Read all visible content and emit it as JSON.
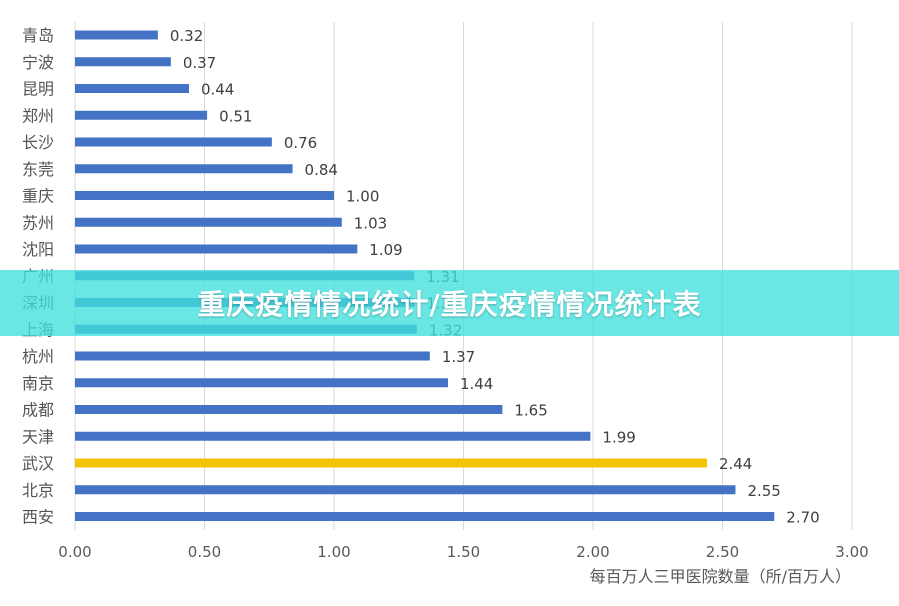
{
  "banner": {
    "text": "重庆疫情情况统计/重庆疫情情况统计表"
  },
  "colors": {
    "bar": "#4472c4",
    "highlight": "#f5c400",
    "grid": "#d9d9d9",
    "banner": "#40e0dc"
  },
  "chart_data": {
    "type": "bar",
    "orientation": "horizontal",
    "categories": [
      "青岛",
      "宁波",
      "昆明",
      "郑州",
      "长沙",
      "东莞",
      "重庆",
      "苏州",
      "沈阳",
      "广州",
      "深圳",
      "上海",
      "杭州",
      "南京",
      "成都",
      "天津",
      "武汉",
      "北京",
      "西安"
    ],
    "values": [
      0.32,
      0.37,
      0.44,
      0.51,
      0.76,
      0.84,
      1.0,
      1.03,
      1.09,
      1.31,
      1.31,
      1.32,
      1.37,
      1.44,
      1.65,
      1.99,
      2.44,
      2.55,
      2.7
    ],
    "value_labels": [
      "0.32",
      "0.37",
      "0.44",
      "0.51",
      "0.76",
      "0.84",
      "1.00",
      "1.03",
      "1.09",
      "1.31",
      "1.3",
      "1.32",
      "1.37",
      "1.44",
      "1.65",
      "1.99",
      "2.44",
      "2.55",
      "2.70"
    ],
    "highlight_category": "武汉",
    "xlabel": "每百万人三甲医院数量（所/百万人）",
    "ylabel": "",
    "xlim": [
      0,
      3.0
    ],
    "xticks": [
      "0.00",
      "0.50",
      "1.00",
      "1.50",
      "2.00",
      "2.50",
      "3.00"
    ],
    "grid": true,
    "legend": "none"
  }
}
